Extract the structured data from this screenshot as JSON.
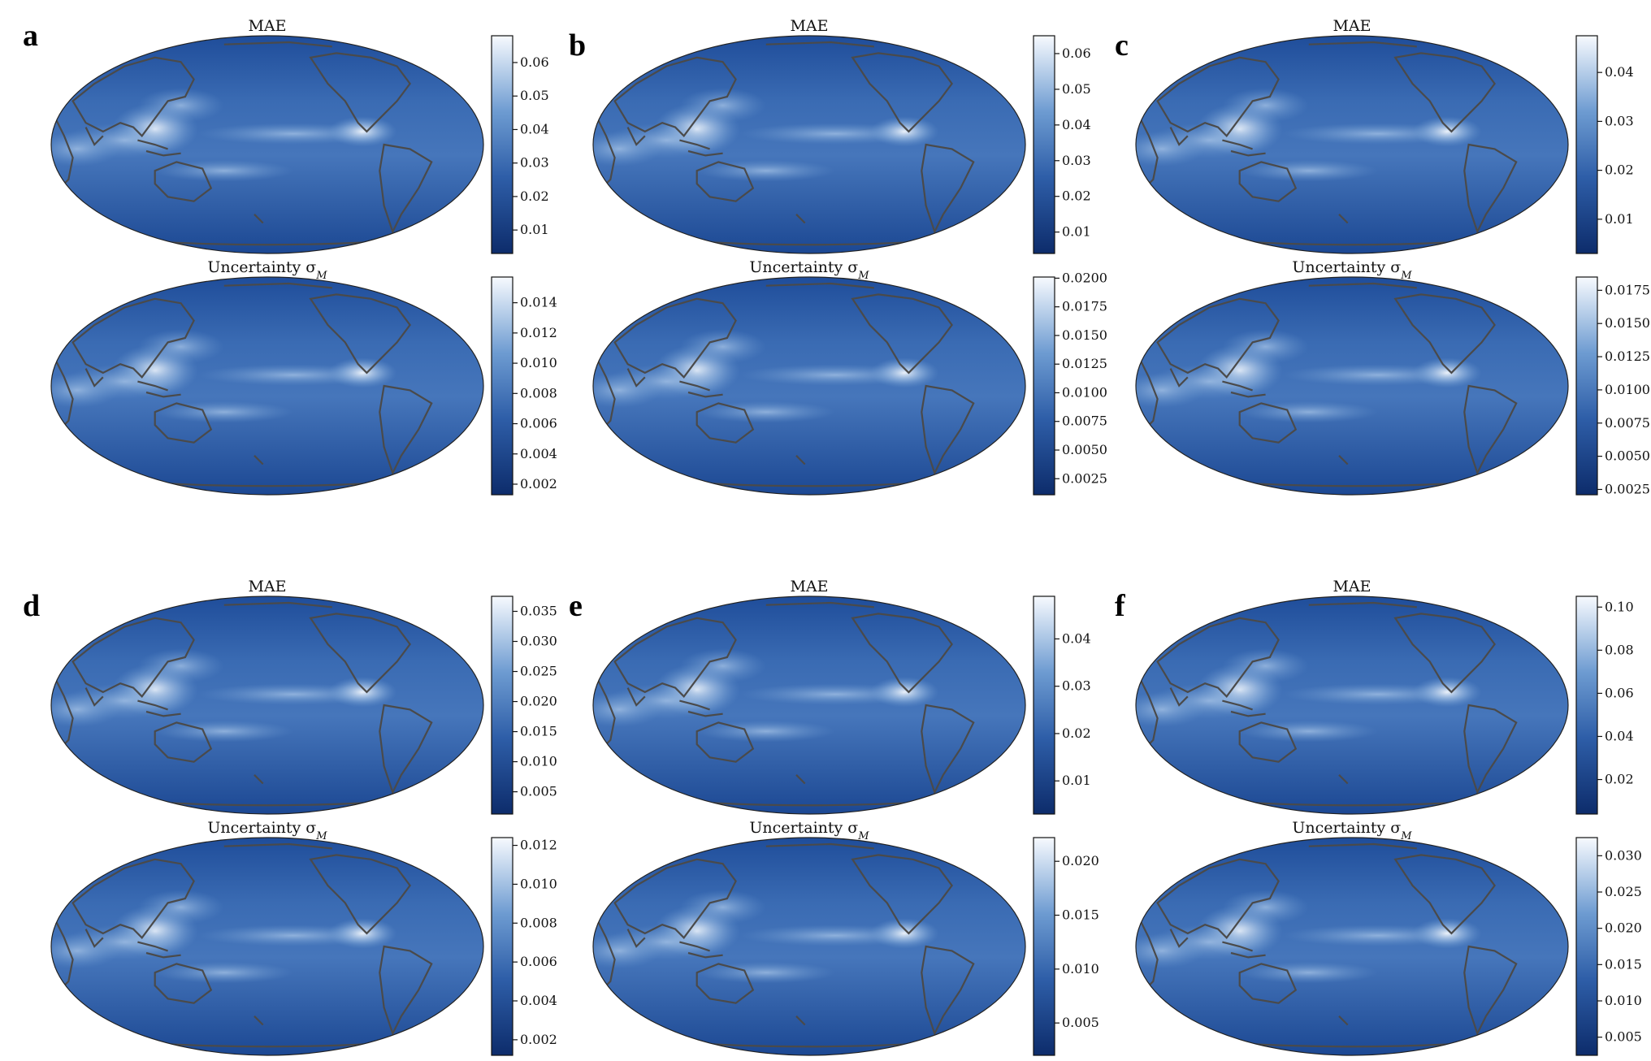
{
  "chart_data": [
    {
      "panel": "a",
      "type": "heatmap",
      "title": "MAE",
      "colormap": "Blues_r",
      "vmin": 0.003,
      "vmax": 0.068,
      "ticks": [
        "0.01",
        "0.02",
        "0.03",
        "0.04",
        "0.05",
        "0.06"
      ],
      "tick_values": [
        0.01,
        0.02,
        0.03,
        0.04,
        0.05,
        0.06
      ]
    },
    {
      "panel": "a",
      "type": "heatmap",
      "title": "Uncertainty σ",
      "title_sub": "M",
      "colormap": "Blues_r",
      "vmin": 0.0013,
      "vmax": 0.0157,
      "ticks": [
        "0.002",
        "0.004",
        "0.006",
        "0.008",
        "0.010",
        "0.012",
        "0.014"
      ],
      "tick_values": [
        0.002,
        0.004,
        0.006,
        0.008,
        0.01,
        0.012,
        0.014
      ]
    },
    {
      "panel": "b",
      "type": "heatmap",
      "title": "MAE",
      "colormap": "Blues_r",
      "vmin": 0.004,
      "vmax": 0.065,
      "ticks": [
        "0.01",
        "0.02",
        "0.03",
        "0.04",
        "0.05",
        "0.06"
      ],
      "tick_values": [
        0.01,
        0.02,
        0.03,
        0.04,
        0.05,
        0.06
      ]
    },
    {
      "panel": "b",
      "type": "heatmap",
      "title": "Uncertainty σ",
      "title_sub": "M",
      "colormap": "Blues_r",
      "vmin": 0.0011,
      "vmax": 0.0201,
      "ticks": [
        "0.0025",
        "0.0050",
        "0.0075",
        "0.0100",
        "0.0125",
        "0.0150",
        "0.0175",
        "0.0200"
      ],
      "tick_values": [
        0.0025,
        0.005,
        0.0075,
        0.01,
        0.0125,
        0.015,
        0.0175,
        0.02
      ]
    },
    {
      "panel": "c",
      "type": "heatmap",
      "title": "MAE",
      "colormap": "Blues_r",
      "vmin": 0.003,
      "vmax": 0.0475,
      "ticks": [
        "0.01",
        "0.02",
        "0.03",
        "0.04"
      ],
      "tick_values": [
        0.01,
        0.02,
        0.03,
        0.04
      ]
    },
    {
      "panel": "c",
      "type": "heatmap",
      "title": "Uncertainty σ",
      "title_sub": "M",
      "colormap": "Blues_r",
      "vmin": 0.0021,
      "vmax": 0.0185,
      "ticks": [
        "0.0025",
        "0.0050",
        "0.0075",
        "0.0100",
        "0.0125",
        "0.0150",
        "0.0175"
      ],
      "tick_values": [
        0.0025,
        0.005,
        0.0075,
        0.01,
        0.0125,
        0.015,
        0.0175
      ]
    },
    {
      "panel": "d",
      "type": "heatmap",
      "title": "MAE",
      "colormap": "Blues_r",
      "vmin": 0.0013,
      "vmax": 0.0375,
      "ticks": [
        "0.005",
        "0.010",
        "0.015",
        "0.020",
        "0.025",
        "0.030",
        "0.035"
      ],
      "tick_values": [
        0.005,
        0.01,
        0.015,
        0.02,
        0.025,
        0.03,
        0.035
      ]
    },
    {
      "panel": "d",
      "type": "heatmap",
      "title": "Uncertainty σ",
      "title_sub": "M",
      "colormap": "Blues_r",
      "vmin": 0.0012,
      "vmax": 0.0124,
      "ticks": [
        "0.002",
        "0.004",
        "0.006",
        "0.008",
        "0.010",
        "0.012"
      ],
      "tick_values": [
        0.002,
        0.004,
        0.006,
        0.008,
        0.01,
        0.012
      ]
    },
    {
      "panel": "e",
      "type": "heatmap",
      "title": "MAE",
      "colormap": "Blues_r",
      "vmin": 0.003,
      "vmax": 0.049,
      "ticks": [
        "0.01",
        "0.02",
        "0.03",
        "0.04"
      ],
      "tick_values": [
        0.01,
        0.02,
        0.03,
        0.04
      ]
    },
    {
      "panel": "e",
      "type": "heatmap",
      "title": "Uncertainty σ",
      "title_sub": "M",
      "colormap": "Blues_r",
      "vmin": 0.002,
      "vmax": 0.0222,
      "ticks": [
        "0.005",
        "0.010",
        "0.015",
        "0.020"
      ],
      "tick_values": [
        0.005,
        0.01,
        0.015,
        0.02
      ]
    },
    {
      "panel": "f",
      "type": "heatmap",
      "title": "MAE",
      "colormap": "Blues_r",
      "vmin": 0.004,
      "vmax": 0.105,
      "ticks": [
        "0.02",
        "0.04",
        "0.06",
        "0.08",
        "0.10"
      ],
      "tick_values": [
        0.02,
        0.04,
        0.06,
        0.08,
        0.1
      ]
    },
    {
      "panel": "f",
      "type": "heatmap",
      "title": "Uncertainty σ",
      "title_sub": "M",
      "colormap": "Blues_r",
      "vmin": 0.0025,
      "vmax": 0.0325,
      "ticks": [
        "0.005",
        "0.010",
        "0.015",
        "0.020",
        "0.025",
        "0.030"
      ],
      "tick_values": [
        0.005,
        0.01,
        0.015,
        0.02,
        0.025,
        0.03
      ]
    }
  ],
  "panel_labels": [
    "a",
    "b",
    "c",
    "d",
    "e",
    "f"
  ],
  "colors": {
    "dark": "#0d2c6b",
    "mid": "#3a6eb5",
    "light": "#f3f6fc",
    "coast": "#4a4a4a"
  }
}
